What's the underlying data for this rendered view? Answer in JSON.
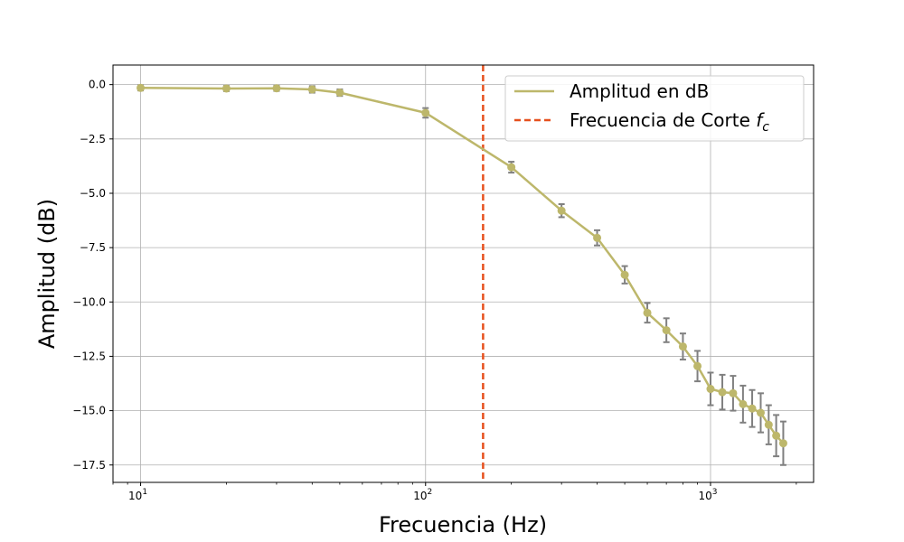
{
  "chart_data": {
    "type": "line",
    "xscale": "log",
    "xlabel": "Frecuencia (Hz)",
    "ylabel": "Amplitud (dB)",
    "xlim": [
      8,
      2300
    ],
    "ylim": [
      -18.3,
      0.9
    ],
    "grid": true,
    "legend_position": "top-right",
    "colors": {
      "series": "#bdb76b",
      "cutoff": "#e6501e",
      "errorbar": "#808080",
      "grid": "#b0b0b0"
    },
    "x_ticks": [
      {
        "value": 10,
        "base": "10",
        "exp": "1"
      },
      {
        "value": 100,
        "base": "10",
        "exp": "2"
      },
      {
        "value": 1000,
        "base": "10",
        "exp": "3"
      }
    ],
    "y_ticks": [
      {
        "value": 0,
        "label": "0.0"
      },
      {
        "value": -2.5,
        "label": "−2.5"
      },
      {
        "value": -5,
        "label": "−5.0"
      },
      {
        "value": -7.5,
        "label": "−7.5"
      },
      {
        "value": -10,
        "label": "−10.0"
      },
      {
        "value": -12.5,
        "label": "−12.5"
      },
      {
        "value": -15,
        "label": "−15.0"
      },
      {
        "value": -17.5,
        "label": "−17.5"
      }
    ],
    "series": [
      {
        "name": "Amplitud en dB",
        "x": [
          10,
          20,
          30,
          40,
          50,
          100,
          200,
          300,
          400,
          500,
          600,
          700,
          800,
          900,
          1000,
          1100,
          1200,
          1300,
          1400,
          1500,
          1600,
          1700,
          1800
        ],
        "y": [
          -0.15,
          -0.18,
          -0.17,
          -0.22,
          -0.37,
          -1.3,
          -3.8,
          -5.8,
          -7.05,
          -8.75,
          -10.5,
          -11.3,
          -12.05,
          -12.95,
          -14.0,
          -14.15,
          -14.2,
          -14.7,
          -14.9,
          -15.1,
          -15.65,
          -16.15,
          -16.5
        ],
        "yerr": [
          0.12,
          0.12,
          0.12,
          0.15,
          0.15,
          0.22,
          0.25,
          0.3,
          0.35,
          0.4,
          0.45,
          0.55,
          0.6,
          0.7,
          0.75,
          0.8,
          0.8,
          0.85,
          0.85,
          0.9,
          0.9,
          0.95,
          1.0
        ]
      }
    ],
    "cutoff": {
      "name": "Frecuencia de Corte",
      "name_symbol": "f",
      "name_sub": "c",
      "x": 159.15
    }
  }
}
